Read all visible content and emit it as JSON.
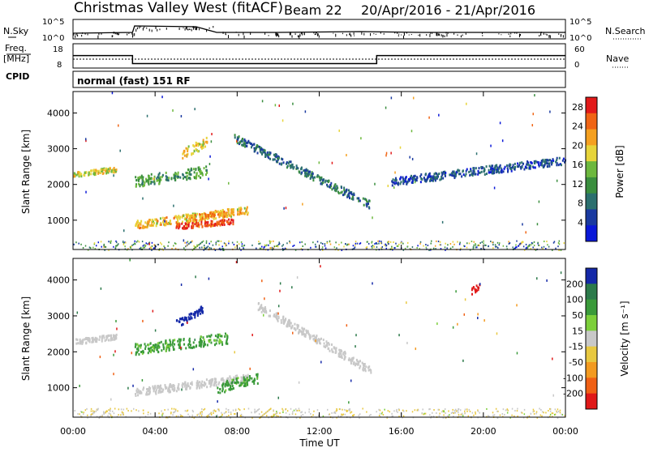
{
  "header": {
    "station": "Christmas Valley West (fitACF)",
    "beam": "Beam 22",
    "date_range": "20/Apr/2016 - 21/Apr/2016"
  },
  "strip_labels": {
    "nsky": "N.Sky",
    "nsearch": "N.Search",
    "freq": "Freq.",
    "freq_unit": "[MHz]",
    "nave": "Nave",
    "cpid": "CPID",
    "cpid_value": "normal (fast) 151 RF"
  },
  "chart_data": [
    {
      "type": "line",
      "name": "noise",
      "x_range_hours": [
        0,
        24
      ],
      "left_ticks": [
        "10^5",
        "10^0"
      ],
      "right_ticks": [
        "10^5",
        "10^0"
      ],
      "series": [
        {
          "name": "N.Sky",
          "x": [
            0,
            2.9,
            3.0,
            6.0,
            7.0,
            10.0,
            14.0,
            17.0,
            20.0,
            24.0
          ],
          "y_level": [
            0.25,
            0.3,
            0.7,
            0.65,
            0.3,
            0.3,
            0.35,
            0.3,
            0.3,
            0.3
          ]
        }
      ]
    },
    {
      "type": "line",
      "name": "frequency",
      "x_range_hours": [
        0,
        24
      ],
      "left_ticks": [
        "18",
        "8"
      ],
      "right_ticks": [
        "60",
        "0"
      ],
      "series": [
        {
          "name": "Freq.",
          "x": [
            0,
            2.9,
            2.9,
            14.8,
            14.8,
            24
          ],
          "y": [
            15,
            15,
            10.5,
            10.5,
            15,
            15
          ]
        },
        {
          "name": "Nave",
          "x": [
            0,
            24
          ],
          "y": [
            13,
            13
          ]
        }
      ]
    },
    {
      "type": "heatmap",
      "name": "power",
      "xlabel": "Time UT",
      "ylabel": "Slant Range [km]",
      "x_ticks": [
        "00:00",
        "04:00",
        "08:00",
        "12:00",
        "16:00",
        "20:00",
        "00:00"
      ],
      "x_range_hours": [
        0,
        24
      ],
      "y_ticks": [
        1000,
        2000,
        3000,
        4000
      ],
      "ylim": [
        180,
        4600
      ],
      "colorbar": {
        "label": "Power [dB]",
        "ticks": [
          4,
          8,
          12,
          16,
          20,
          24,
          28
        ],
        "range": [
          0,
          30
        ]
      },
      "features": [
        {
          "t": [
            0,
            2.1
          ],
          "range": [
            2300,
            2450
          ],
          "value": 18
        },
        {
          "t": [
            3.0,
            8.5
          ],
          "range": [
            900,
            1300
          ],
          "value": 20
        },
        {
          "t": [
            5.0,
            7.8
          ],
          "range": [
            850,
            1000
          ],
          "value": 27
        },
        {
          "t": [
            5.5,
            7.8
          ],
          "range": [
            1050,
            1250
          ],
          "value": 22
        },
        {
          "t": [
            7.8,
            14.5
          ],
          "range": [
            3350,
            1450
          ],
          "value": 8
        },
        {
          "t": [
            5.3,
            6.5
          ],
          "range": [
            2900,
            3200
          ],
          "value": 19
        },
        {
          "t": [
            3.0,
            6.5
          ],
          "range": [
            2100,
            2400
          ],
          "value": 12
        },
        {
          "t": [
            15.5,
            24
          ],
          "range": [
            2100,
            2700
          ],
          "value": 6
        }
      ]
    },
    {
      "type": "heatmap",
      "name": "velocity",
      "xlabel": "Time UT",
      "ylabel": "Slant Range [km]",
      "x_ticks": [
        "00:00",
        "04:00",
        "08:00",
        "12:00",
        "16:00",
        "20:00",
        "00:00"
      ],
      "x_range_hours": [
        0,
        24
      ],
      "y_ticks": [
        1000,
        2000,
        3000,
        4000
      ],
      "ylim": [
        180,
        4600
      ],
      "colorbar": {
        "label": "Velocity [m s⁻¹]",
        "ticks": [
          200,
          100,
          50,
          15,
          -15,
          -50,
          -100,
          -200
        ],
        "range": [
          -250,
          250
        ]
      },
      "features": [
        {
          "t": [
            0,
            2.1
          ],
          "range": [
            2300,
            2450
          ],
          "value": 0
        },
        {
          "t": [
            3.0,
            8.5
          ],
          "range": [
            900,
            1300
          ],
          "value": 0
        },
        {
          "t": [
            7.0,
            9.0
          ],
          "range": [
            1000,
            1300
          ],
          "value": 40
        },
        {
          "t": [
            5.0,
            6.3
          ],
          "range": [
            2800,
            3200
          ],
          "value": 190
        },
        {
          "t": [
            3.0,
            7.5
          ],
          "range": [
            2100,
            2400
          ],
          "value": 40
        },
        {
          "t": [
            9.0,
            14.5
          ],
          "range": [
            3300,
            1500
          ],
          "value": 0
        },
        {
          "t": [
            19.4,
            19.8
          ],
          "range": [
            3700,
            3900
          ],
          "value": -200
        }
      ]
    }
  ]
}
